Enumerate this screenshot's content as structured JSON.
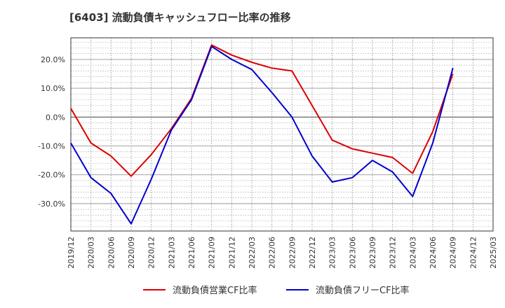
{
  "chart_data": {
    "type": "line",
    "title": "[6403]  流動負債キャッシュフロー比率の推移",
    "xlabel": "",
    "ylabel": "",
    "x": [
      "2019/12",
      "2020/03",
      "2020/06",
      "2020/09",
      "2020/12",
      "2021/03",
      "2021/06",
      "2021/09",
      "2021/12",
      "2022/03",
      "2022/06",
      "2022/09",
      "2022/12",
      "2023/03",
      "2023/06",
      "2023/09",
      "2023/12",
      "2024/03",
      "2024/06",
      "2024/09"
    ],
    "x_ticks": [
      "2019/12",
      "2020/03",
      "2020/06",
      "2020/09",
      "2020/12",
      "2021/03",
      "2021/06",
      "2021/09",
      "2021/12",
      "2022/03",
      "2022/06",
      "2022/09",
      "2022/12",
      "2023/03",
      "2023/06",
      "2023/09",
      "2023/12",
      "2024/03",
      "2024/06",
      "2024/09",
      "2024/12",
      "2025/03"
    ],
    "y_ticks": [
      20,
      10,
      0,
      -10,
      -20,
      -30
    ],
    "y_tick_labels": [
      "20.0%",
      "10.0%",
      "0.0%",
      "-10.0%",
      "-20.0%",
      "-30.0%"
    ],
    "ylim": [
      -39.5,
      27.5
    ],
    "grid": true,
    "legend_position": "bottom",
    "series": [
      {
        "name": "流動負債営業CF比率",
        "color": "#dd0000",
        "values": [
          3.0,
          -9.0,
          -13.5,
          -20.5,
          -13.0,
          -4.0,
          6.5,
          25.0,
          21.5,
          19.0,
          17.0,
          16.0,
          4.0,
          -8.0,
          -11.0,
          -12.5,
          -14.0,
          -19.5,
          -5.0,
          15.0
        ]
      },
      {
        "name": "流動負債フリーCF比率",
        "color": "#0000cc",
        "values": [
          -9.0,
          -21.0,
          -26.5,
          -37.0,
          -21.5,
          -4.5,
          6.0,
          24.5,
          20.0,
          16.5,
          8.5,
          0.0,
          -13.5,
          -22.5,
          -21.0,
          -15.0,
          -19.0,
          -27.5,
          -9.0,
          17.0
        ]
      }
    ]
  }
}
